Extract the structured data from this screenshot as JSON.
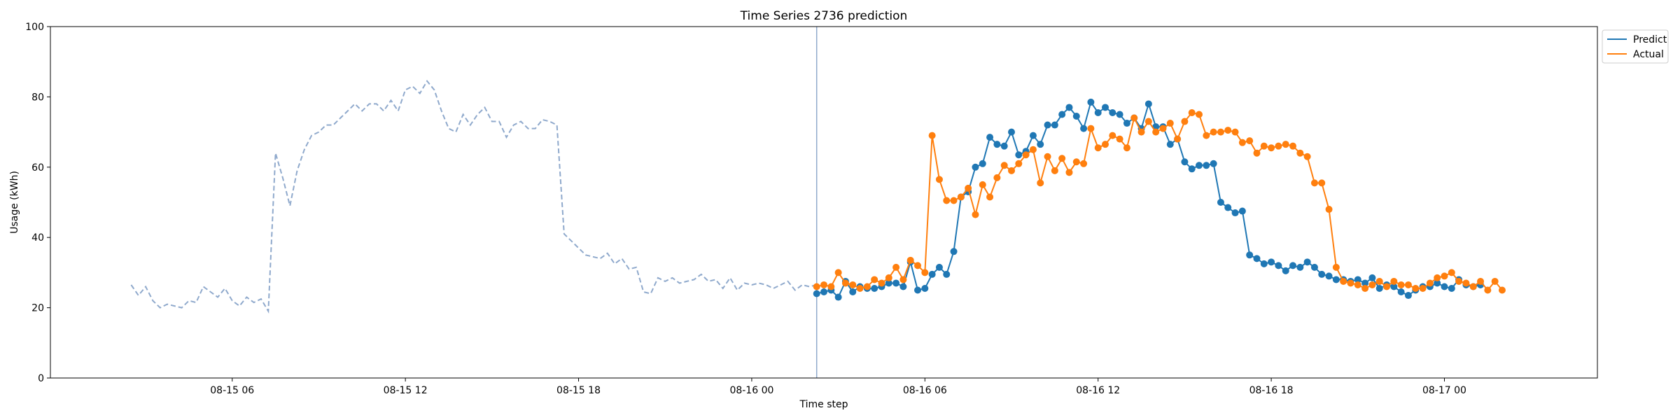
{
  "chart_data": {
    "type": "line",
    "title": "Time Series 2736 prediction",
    "xlabel": "Time step",
    "ylabel": "Usage (kWh)",
    "ylim": [
      0,
      100
    ],
    "y_ticks": [
      0,
      20,
      40,
      60,
      80,
      100
    ],
    "x_ticks": [
      {
        "t": 6,
        "label": "08-15 06"
      },
      {
        "t": 12,
        "label": "08-15 12"
      },
      {
        "t": 18,
        "label": "08-15 18"
      },
      {
        "t": 24,
        "label": "08-16 00"
      },
      {
        "t": 30,
        "label": "08-16 06"
      },
      {
        "t": 36,
        "label": "08-16 12"
      },
      {
        "t": 42,
        "label": "08-16 18"
      },
      {
        "t": 48,
        "label": "08-17 00"
      }
    ],
    "x_unit_note": "hours since 08-15 00",
    "xlim": [
      -0.3,
      53.3
    ],
    "forecast_start": 26.25,
    "step": 0.25,
    "legend_position": "top-right outside",
    "colors": {
      "history": "#8fa9cc",
      "predict": "#1f77b4",
      "actual": "#ff7f0e",
      "vline": "#8fa9cc"
    },
    "history": {
      "start": 2.5,
      "values": [
        26.5,
        23.5,
        26,
        22,
        20,
        21,
        20.5,
        20,
        22,
        21.5,
        26,
        24.5,
        23,
        25.5,
        22,
        20.5,
        23,
        21.5,
        22.5,
        19,
        64,
        57,
        49,
        59,
        65,
        69,
        70,
        72,
        72,
        74,
        76,
        78,
        76,
        78,
        78,
        76,
        79,
        76,
        82,
        83,
        81,
        84.5,
        82,
        76,
        71,
        70,
        75,
        72,
        75,
        77,
        73,
        73,
        68.5,
        72,
        73,
        71,
        71,
        73.5,
        73,
        72,
        41,
        39,
        37,
        35,
        34.5,
        34,
        35.5,
        32.5,
        34,
        31,
        31.5,
        24.5,
        24,
        28.5,
        27.5,
        28.5,
        27,
        27.5,
        28,
        29.5,
        27.5,
        28,
        25.5,
        28.5,
        25,
        27,
        26.5,
        27,
        26.5,
        25.5,
        26.5,
        27.5,
        25,
        26.5,
        26,
        26.5
      ]
    },
    "series": [
      {
        "name": "Predict",
        "start": 26.25,
        "values": [
          24,
          24.5,
          25,
          23,
          27.5,
          24.5,
          26,
          25.5,
          25.5,
          26,
          27,
          27,
          26,
          33,
          25,
          25.5,
          29.5,
          31.5,
          29.5,
          36,
          51.5,
          53,
          60,
          61,
          68.5,
          66.5,
          66,
          70,
          63.5,
          64.5,
          69,
          66.5,
          72,
          72,
          75,
          77,
          74.5,
          71,
          78.5,
          75.5,
          77,
          75.5,
          75,
          72.5,
          74,
          71,
          78,
          71.5,
          71.5,
          66.5,
          68,
          61.5,
          59.5,
          60.5,
          60.5,
          61,
          50,
          48.5,
          47,
          47.5,
          35,
          34,
          32.5,
          33,
          32,
          30.5,
          32,
          31.5,
          33,
          31.5,
          29.5,
          29,
          28,
          28,
          27.5,
          28,
          27,
          28.5,
          25.5,
          26.5,
          26,
          24.5,
          23.5,
          25,
          26,
          26,
          27,
          26,
          25.5,
          28,
          26.5,
          26,
          26.5
        ]
      },
      {
        "name": "Actual",
        "start": 26.25,
        "values": [
          26,
          26.5,
          26,
          30,
          27,
          26.5,
          25.5,
          26,
          28,
          27,
          28.5,
          31.5,
          28,
          33.5,
          32,
          30,
          69,
          56.5,
          50.5,
          50.5,
          51.5,
          54,
          46.5,
          55,
          51.5,
          57,
          60.5,
          59,
          61,
          63.5,
          65,
          55.5,
          63,
          59,
          62.5,
          58.5,
          61.5,
          61,
          71,
          65.5,
          66.5,
          69,
          68,
          65.5,
          74,
          70,
          73,
          70,
          71,
          72.5,
          68,
          73,
          75.5,
          75,
          69,
          70,
          70,
          70.5,
          70,
          67,
          67.5,
          64,
          66,
          65.5,
          66,
          66.5,
          66,
          64,
          63,
          55.5,
          55.5,
          48,
          31.5,
          27.5,
          27,
          26.5,
          25.5,
          26.5,
          27.5,
          26,
          27.5,
          26.5,
          26.5,
          25.5,
          25.5,
          27,
          28.5,
          29,
          30,
          27.5,
          27,
          26,
          27.5,
          25,
          27.5,
          25
        ]
      }
    ]
  }
}
